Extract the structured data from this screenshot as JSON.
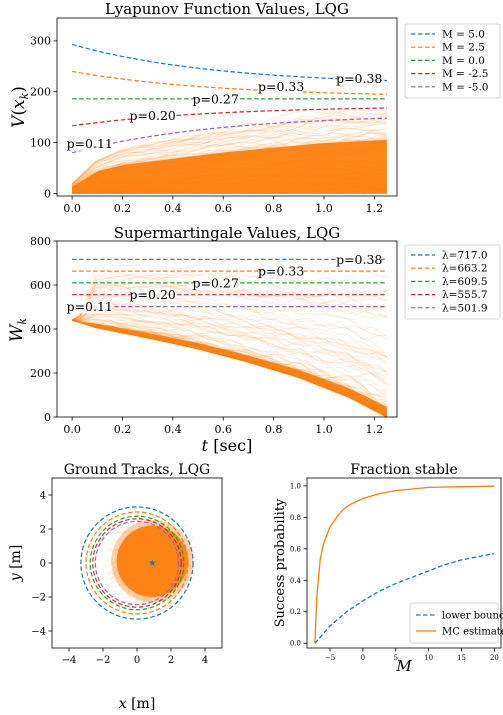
{
  "figure": {
    "colors": {
      "blue": "#1f77b4",
      "orange": "#ff7f0e",
      "green": "#2ca02c",
      "red": "#d62728",
      "purple": "#9467bd",
      "traj": "#ff7f0e"
    }
  },
  "chart_data": [
    {
      "type": "line",
      "title": "Lyapunov Function Values, LQG",
      "xlabel": "",
      "ylabel": "V(x_k)",
      "ylabel_main": "V",
      "ylabel_paren_open": "(",
      "ylabel_x": "x",
      "ylabel_sub": "k",
      "ylabel_paren_close": ")",
      "xlim": [
        -0.06,
        1.29
      ],
      "ylim": [
        -5,
        345
      ],
      "xticks": [
        0.0,
        0.2,
        0.4,
        0.6,
        0.8,
        1.0,
        1.2
      ],
      "xtick_labels": [
        "0.0",
        "0.2",
        "0.4",
        "0.6",
        "0.8",
        "1.0",
        "1.2"
      ],
      "yticks": [
        0,
        100,
        200,
        300
      ],
      "ytick_labels": [
        "0",
        "100",
        "200",
        "300"
      ],
      "grid": false,
      "legend_position": "outside-right",
      "series": [
        {
          "name": "M = 5.0",
          "color": "blue",
          "x": [
            0.0,
            1.25
          ],
          "values": [
            293,
            222
          ]
        },
        {
          "name": "M = 2.5",
          "color": "orange",
          "x": [
            0.0,
            1.25
          ],
          "values": [
            240,
            195
          ]
        },
        {
          "name": "M = 0.0",
          "color": "green",
          "x": [
            0.0,
            1.25
          ],
          "values": [
            186,
            186
          ]
        },
        {
          "name": "M = -2.5",
          "color": "red",
          "x": [
            0.0,
            1.25
          ],
          "values": [
            133,
            168
          ]
        },
        {
          "name": "M = -5.0",
          "color": "purple",
          "x": [
            0.0,
            1.25
          ],
          "values": [
            80,
            148
          ]
        }
      ],
      "annotations": [
        {
          "text": "p=0.38",
          "x": 1.14,
          "y": 226,
          "color": "blue"
        },
        {
          "text": "p=0.33",
          "x": 0.83,
          "y": 210,
          "color": "orange"
        },
        {
          "text": "p=0.27",
          "x": 0.57,
          "y": 186,
          "color": "green"
        },
        {
          "text": "p=0.20",
          "x": 0.32,
          "y": 153,
          "color": "red"
        },
        {
          "text": "p=0.11",
          "x": 0.07,
          "y": 98,
          "color": "purple"
        }
      ],
      "envelope": {
        "x": [
          0.0,
          0.1,
          0.2,
          0.4,
          0.6,
          0.8,
          1.0,
          1.25
        ],
        "upper": [
          20,
          70,
          90,
          110,
          130,
          145,
          160,
          170
        ],
        "lower": [
          0,
          0,
          0,
          0,
          0,
          0,
          0,
          0
        ]
      }
    },
    {
      "type": "line",
      "title": "Supermartingale Values, LQG",
      "xlabel": "t [sec]",
      "xlabel_var": "t",
      "xlabel_unit": " [sec]",
      "ylabel": "W_k",
      "ylabel_main": "W",
      "ylabel_sub": "k",
      "xlim": [
        -0.06,
        1.29
      ],
      "ylim": [
        0,
        800
      ],
      "xticks": [
        0.0,
        0.2,
        0.4,
        0.6,
        0.8,
        1.0,
        1.2
      ],
      "xtick_labels": [
        "0.0",
        "0.2",
        "0.4",
        "0.6",
        "0.8",
        "1.0",
        "1.2"
      ],
      "yticks": [
        0,
        200,
        400,
        600,
        800
      ],
      "ytick_labels": [
        "0",
        "200",
        "400",
        "600",
        "800"
      ],
      "grid": false,
      "legend_position": "outside-right",
      "series": [
        {
          "name": "λ=717.0",
          "color": "blue",
          "x": [
            0.0,
            1.25
          ],
          "values": [
            717.0,
            717.0
          ]
        },
        {
          "name": "λ=663.2",
          "color": "orange",
          "x": [
            0.0,
            1.25
          ],
          "values": [
            663.2,
            663.2
          ]
        },
        {
          "name": "λ=609.5",
          "color": "green",
          "x": [
            0.0,
            1.25
          ],
          "values": [
            609.5,
            609.5
          ]
        },
        {
          "name": "λ=555.7",
          "color": "red",
          "x": [
            0.0,
            1.25
          ],
          "values": [
            555.7,
            555.7
          ]
        },
        {
          "name": "λ=501.9",
          "color": "purple",
          "x": [
            0.0,
            1.25
          ],
          "values": [
            501.9,
            501.9
          ]
        }
      ],
      "annotations": [
        {
          "text": "p=0.38",
          "x": 1.14,
          "y": 717.0,
          "color": "blue"
        },
        {
          "text": "p=0.33",
          "x": 0.83,
          "y": 663.2,
          "color": "orange"
        },
        {
          "text": "p=0.27",
          "x": 0.57,
          "y": 609.5,
          "color": "green"
        },
        {
          "text": "p=0.20",
          "x": 0.32,
          "y": 555.7,
          "color": "red"
        },
        {
          "text": "p=0.11",
          "x": 0.07,
          "y": 501.9,
          "color": "purple"
        }
      ],
      "envelope": {
        "x": [
          0.0,
          0.03,
          0.1,
          0.3,
          0.5,
          0.7,
          0.9,
          1.1,
          1.25
        ],
        "upper": [
          440,
          470,
          720,
          730,
          740,
          745,
          750,
          760,
          770
        ],
        "lower": [
          440,
          430,
          405,
          360,
          310,
          250,
          180,
          90,
          0
        ]
      }
    },
    {
      "type": "scatter",
      "title": "Ground Tracks, LQG",
      "xlabel": "x [m]",
      "xlabel_var": "x",
      "xlabel_unit": " [m]",
      "ylabel": "y [m]",
      "ylabel_var": "y",
      "ylabel_unit": " [m]",
      "xlim": [
        -5,
        5
      ],
      "ylim": [
        -5,
        5
      ],
      "xticks": [
        -4,
        -2,
        0,
        2,
        4
      ],
      "xtick_labels": [
        "−4",
        "−2",
        "0",
        "2",
        "4"
      ],
      "yticks": [
        -4,
        -2,
        0,
        2,
        4
      ],
      "ytick_labels": [
        "−4",
        "−2",
        "0",
        "2",
        "4"
      ],
      "grid": false,
      "circles": [
        {
          "radius": 3.3,
          "color": "blue"
        },
        {
          "radius": 3.0,
          "color": "orange"
        },
        {
          "radius": 2.75,
          "color": "green"
        },
        {
          "radius": 2.6,
          "color": "red"
        },
        {
          "radius": 2.45,
          "color": "purple"
        }
      ],
      "cloud": {
        "center": [
          0.9,
          0.1
        ],
        "core_radius": 2.1,
        "spread_radius": 2.9
      },
      "target": {
        "x": 0.9,
        "y": 0.0,
        "marker": "star"
      }
    },
    {
      "type": "line",
      "title": "Fraction stable",
      "xlabel": "M",
      "ylabel": "Success probability",
      "xlim": [
        -8.5,
        21
      ],
      "ylim": [
        -0.03,
        1.05
      ],
      "xticks": [
        -5,
        0,
        5,
        10,
        15,
        20
      ],
      "xtick_labels": [
        "−5",
        "0",
        "5",
        "10",
        "15",
        "20"
      ],
      "yticks": [
        0.0,
        0.2,
        0.4,
        0.6,
        0.8,
        1.0
      ],
      "ytick_labels": [
        "0.0",
        "0.2",
        "0.4",
        "0.6",
        "0.8",
        "1.0"
      ],
      "grid": false,
      "legend_position": "lower-right",
      "series": [
        {
          "name": "lower bound",
          "color": "blue",
          "style": "dashed",
          "x": [
            -7.3,
            -5,
            -2.5,
            0,
            2.5,
            5,
            7.5,
            10,
            12.5,
            15,
            17.5,
            20
          ],
          "values": [
            0.0,
            0.11,
            0.2,
            0.27,
            0.33,
            0.38,
            0.42,
            0.46,
            0.5,
            0.53,
            0.55,
            0.57
          ]
        },
        {
          "name": "MC estimate",
          "color": "orange",
          "style": "solid",
          "x": [
            -7.3,
            -7.0,
            -6.5,
            -6.0,
            -5.0,
            -4.0,
            -3.0,
            -2.0,
            0.0,
            2.5,
            5.0,
            7.5,
            10,
            15,
            20
          ],
          "values": [
            0.0,
            0.3,
            0.53,
            0.63,
            0.74,
            0.8,
            0.85,
            0.88,
            0.92,
            0.95,
            0.97,
            0.98,
            0.99,
            0.995,
            0.998
          ]
        }
      ]
    }
  ]
}
